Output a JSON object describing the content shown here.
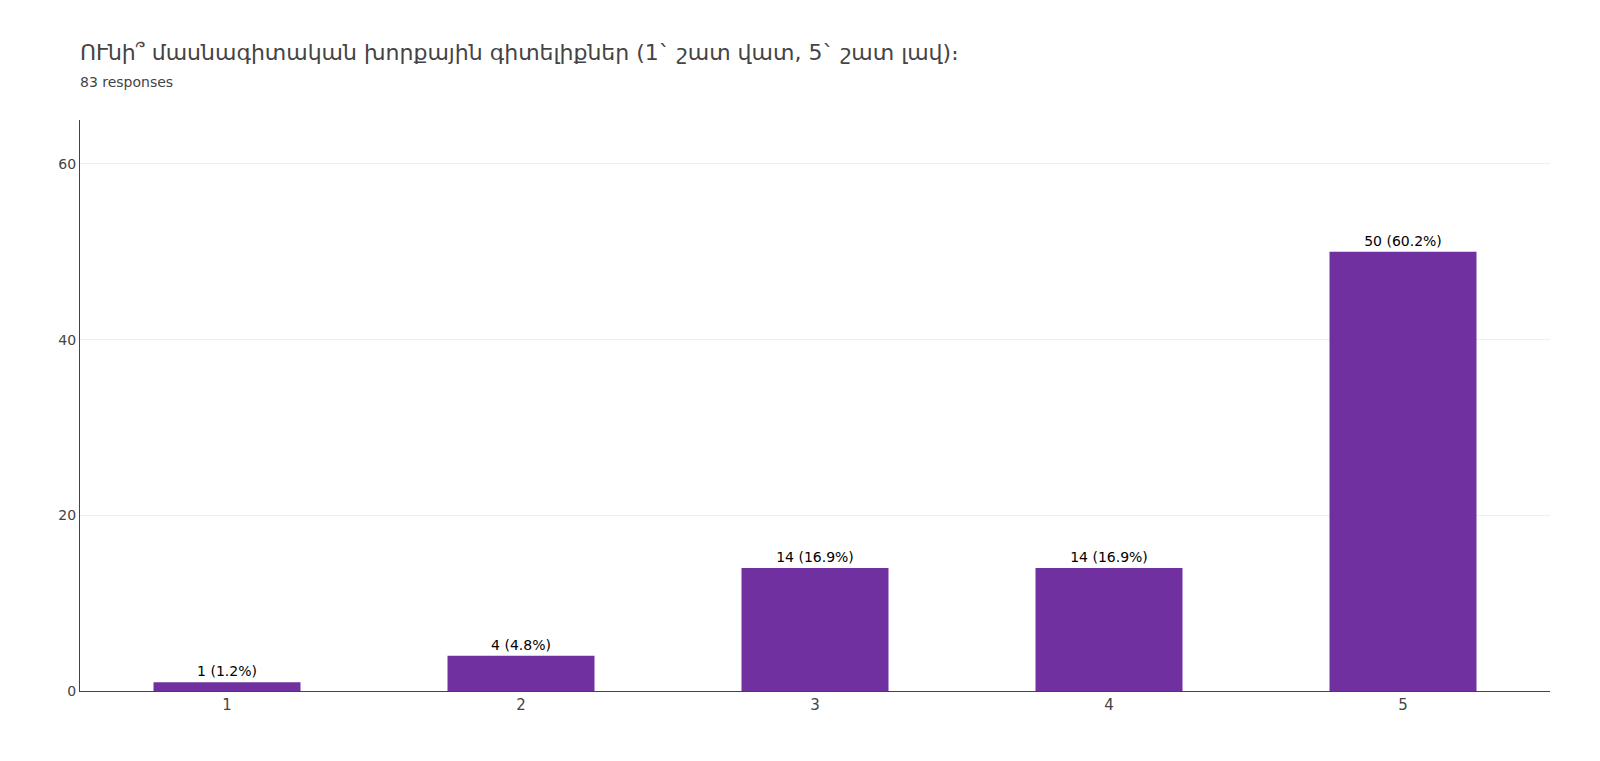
{
  "chart_data": {
    "type": "bar",
    "title": "ՈՒնի՞ մասնագիտական խորքային գիտելիքներ (1` շատ վատ, 5` շատ լավ)։   ",
    "subtitle": "83 responses",
    "categories": [
      1,
      2,
      3,
      4,
      5
    ],
    "values": [
      1,
      4,
      14,
      14,
      50
    ],
    "value_labels": [
      "1 (1.2%)",
      "4 (4.8%)",
      "14 (16.9%)",
      "14 (16.9%)",
      "50 (60.2%)"
    ],
    "data_labels": true,
    "color": "#7030a0",
    "ylim": [
      0,
      65
    ],
    "yticks": [
      0,
      20,
      40,
      60
    ],
    "grid": true
  }
}
